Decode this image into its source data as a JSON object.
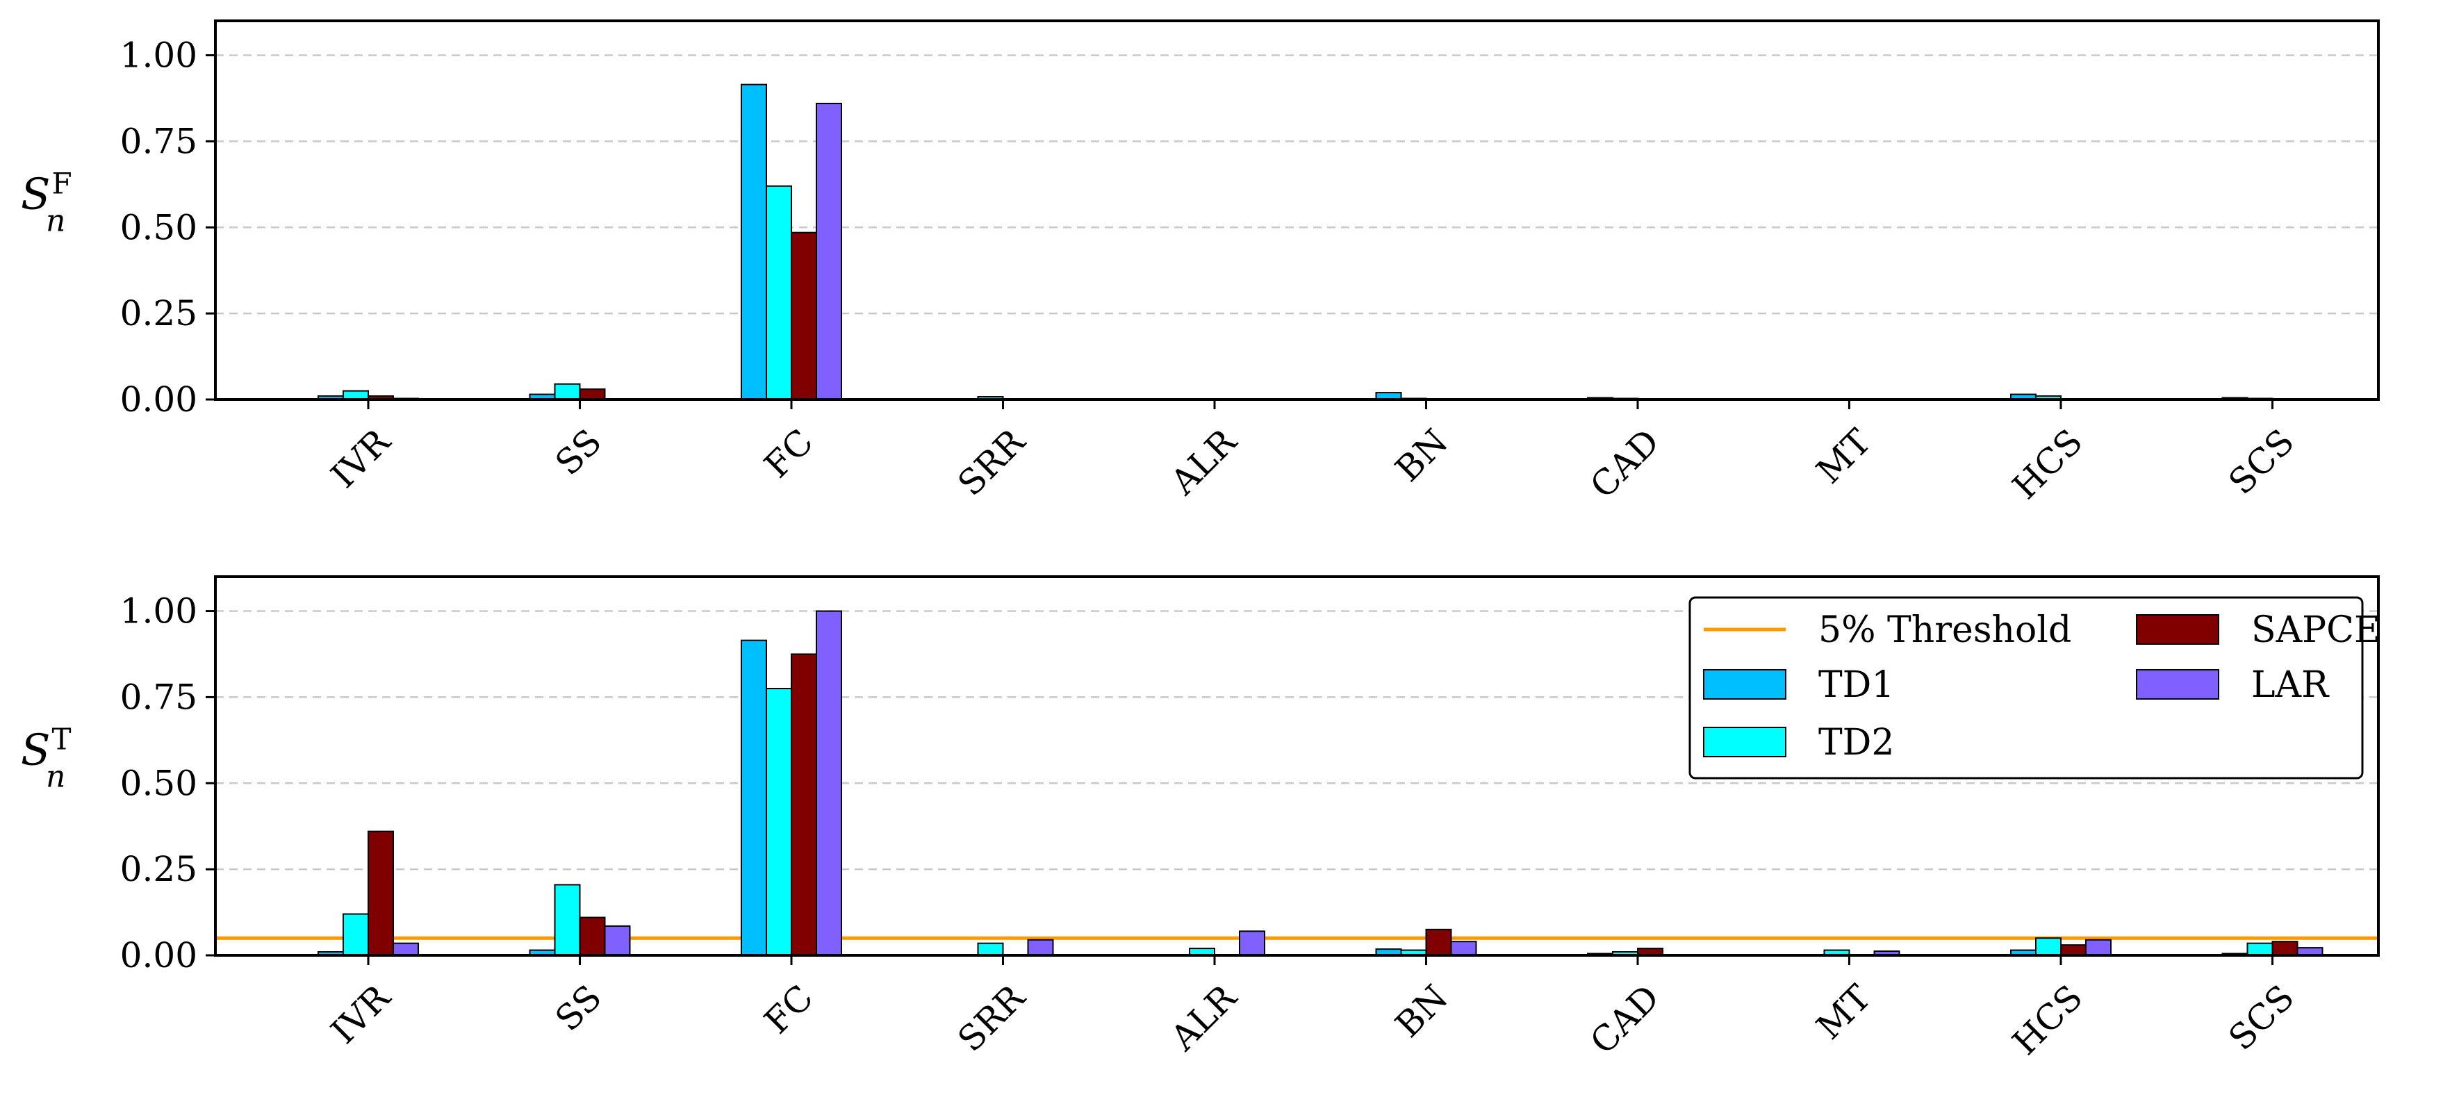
{
  "colors": {
    "TD1": "#00bfff",
    "TD2": "#00ffff",
    "SAPCE": "#800000",
    "LAR": "#8060ff",
    "threshold": "#ff9900",
    "grid": "#c8c8d0"
  },
  "chart_data": [
    {
      "type": "bar",
      "title": "",
      "ylabel": "S",
      "ylabel_sub": "n",
      "ylabel_sup": "F",
      "xlabel": "",
      "ylim": [
        0,
        1.1
      ],
      "yticks": [
        0.0,
        0.25,
        0.5,
        0.75,
        1.0
      ],
      "ytick_labels": [
        "0.00",
        "0.25",
        "0.50",
        "0.75",
        "1.00"
      ],
      "grid": "horizontal dashed",
      "categories": [
        "IVR",
        "SS",
        "FC",
        "SRR",
        "ALR",
        "BN",
        "CAD",
        "MT",
        "HCS",
        "SCS"
      ],
      "series": [
        {
          "name": "TD1",
          "values": [
            0.01,
            0.015,
            0.915,
            0.0,
            0.0,
            0.02,
            0.005,
            0.0,
            0.015,
            0.005
          ]
        },
        {
          "name": "TD2",
          "values": [
            0.025,
            0.045,
            0.62,
            0.008,
            0.0,
            0.003,
            0.003,
            0.0,
            0.01,
            0.003
          ]
        },
        {
          "name": "SAPCE",
          "values": [
            0.01,
            0.03,
            0.485,
            0.0,
            0.0,
            0.0,
            0.0,
            0.0,
            0.0,
            0.0
          ]
        },
        {
          "name": "LAR",
          "values": [
            0.003,
            0.0,
            0.86,
            0.0,
            0.0,
            0.0,
            0.0,
            0.0,
            0.0,
            0.0
          ]
        }
      ]
    },
    {
      "type": "bar",
      "title": "",
      "ylabel": "S",
      "ylabel_sub": "n",
      "ylabel_sup": "T",
      "xlabel": "",
      "ylim": [
        0,
        1.1
      ],
      "yticks": [
        0.0,
        0.25,
        0.5,
        0.75,
        1.0
      ],
      "ytick_labels": [
        "0.00",
        "0.25",
        "0.50",
        "0.75",
        "1.00"
      ],
      "grid": "horizontal dashed",
      "threshold": {
        "name": "5% Threshold",
        "value": 0.05
      },
      "legend": {
        "placement": "top-right",
        "columns": 2,
        "entries": [
          "5% Threshold",
          "TD1",
          "TD2",
          "SAPCE",
          "LAR"
        ]
      },
      "categories": [
        "IVR",
        "SS",
        "FC",
        "SRR",
        "ALR",
        "BN",
        "CAD",
        "MT",
        "HCS",
        "SCS"
      ],
      "series": [
        {
          "name": "TD1",
          "values": [
            0.01,
            0.015,
            0.915,
            0.0,
            0.0,
            0.018,
            0.005,
            0.0,
            0.015,
            0.005
          ]
        },
        {
          "name": "TD2",
          "values": [
            0.12,
            0.205,
            0.775,
            0.035,
            0.02,
            0.015,
            0.01,
            0.015,
            0.05,
            0.035
          ]
        },
        {
          "name": "SAPCE",
          "values": [
            0.36,
            0.11,
            0.875,
            0.0,
            0.0,
            0.075,
            0.02,
            0.0,
            0.03,
            0.04
          ]
        },
        {
          "name": "LAR",
          "values": [
            0.035,
            0.085,
            1.0,
            0.045,
            0.07,
            0.04,
            0.0,
            0.012,
            0.045,
            0.022
          ]
        }
      ]
    }
  ]
}
